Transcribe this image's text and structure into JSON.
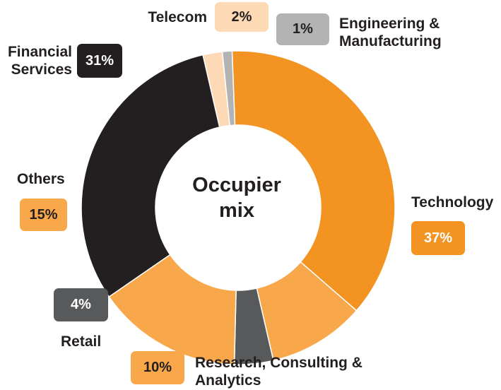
{
  "chart_data": {
    "type": "pie",
    "variant": "donut",
    "title": "Occupier\nmix",
    "unit": "%",
    "slices": [
      {
        "label": "Telecom",
        "value": 2,
        "display": "2%",
        "color": "#fdd9b5"
      },
      {
        "label": "Engineering & Manufacturing",
        "value": 1,
        "display": "1%",
        "color": "#b3b3b3"
      },
      {
        "label": "Technology",
        "value": 37,
        "display": "37%",
        "color": "#f39322"
      },
      {
        "label": "Research, Consulting & Analytics",
        "value": 10,
        "display": "10%",
        "color": "#f8a84a"
      },
      {
        "label": "Retail",
        "value": 4,
        "display": "4%",
        "color": "#58595b"
      },
      {
        "label": "Others",
        "value": 15,
        "display": "15%",
        "color": "#f8a84a"
      },
      {
        "label": "Financial Services",
        "value": 31,
        "display": "31%",
        "color": "#231f20"
      }
    ]
  }
}
